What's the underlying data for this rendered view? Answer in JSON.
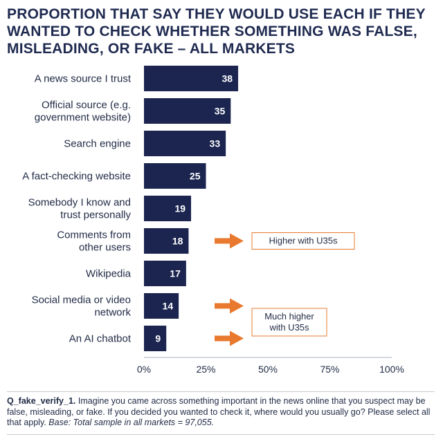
{
  "title": "PROPORTION THAT SAY THEY WOULD USE EACH IF THEY WANTED TO CHECK WHETHER SOMETHING WAS FALSE, MISLEADING, OR FAKE – ALL MARKETS",
  "colors": {
    "bar": "#1b2550",
    "arrow": "#e8792e",
    "box_border": "#e8792e",
    "text": "#1f2a44"
  },
  "chart_data": {
    "type": "bar",
    "orientation": "horizontal",
    "title": "PROPORTION THAT SAY THEY WOULD USE EACH IF THEY WANTED TO CHECK WHETHER SOMETHING WAS FALSE, MISLEADING, OR FAKE – ALL MARKETS",
    "categories": [
      [
        "A news source I trust"
      ],
      [
        "Official source (e.g.",
        "government website)"
      ],
      [
        "Search engine"
      ],
      [
        "A fact-checking website"
      ],
      [
        "Somebody I know and",
        "trust personally"
      ],
      [
        "Comments from",
        "other users"
      ],
      [
        "Wikipedia"
      ],
      [
        "Social media or video",
        "network"
      ],
      [
        "An AI chatbot"
      ]
    ],
    "values": [
      38,
      35,
      33,
      25,
      19,
      18,
      17,
      14,
      9
    ],
    "xlim": [
      0,
      100
    ],
    "xticks": [
      "0%",
      "25%",
      "50%",
      "75%",
      "100%"
    ],
    "xlabel": "",
    "ylabel": "",
    "annotations": [
      {
        "text": [
          "Higher with U35s"
        ],
        "categories": [
          5
        ]
      },
      {
        "text": [
          "Much higher",
          "with U35s"
        ],
        "categories": [
          7,
          8
        ]
      }
    ]
  },
  "footer": {
    "question_code": "Q_fake_verify_1.",
    "question_text": " Imagine you came across something important in the news online that you suspect may be false, misleading, or fake. If you decided you wanted to check it, where would you usually go? Please select all that apply. ",
    "base_text": "Base: Total sample in all markets = 97,055."
  }
}
